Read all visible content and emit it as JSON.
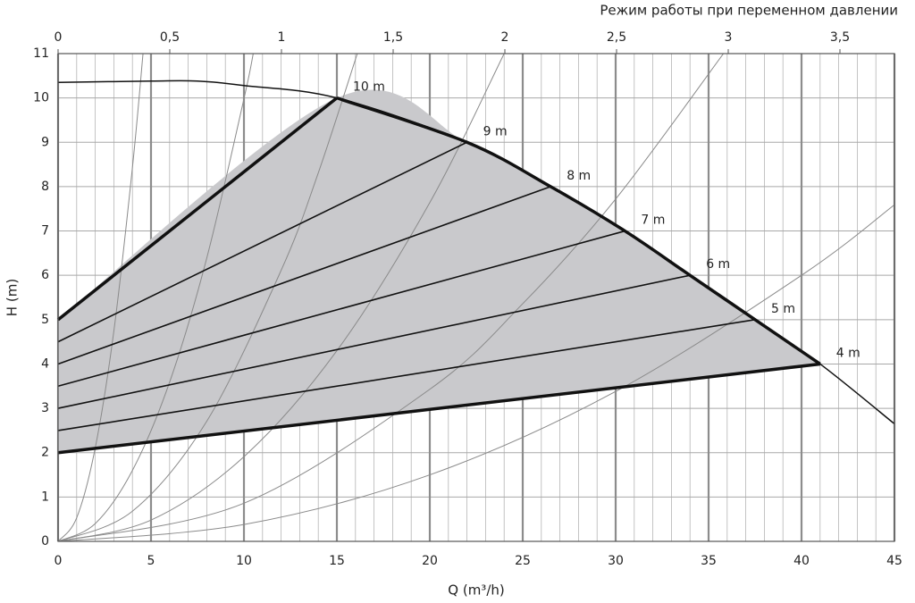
{
  "chart_data": {
    "type": "line",
    "x2label": "Режим работы при переменном давлении",
    "xlabel": "Q (m³/h)",
    "ylabel": "H (m)",
    "xlim": [
      0,
      45
    ],
    "ylim": [
      0,
      11
    ],
    "xticks": [
      0,
      5,
      10,
      15,
      20,
      25,
      30,
      35,
      40,
      45
    ],
    "yticks": [
      0,
      1,
      2,
      3,
      4,
      5,
      6,
      7,
      8,
      9,
      10,
      11
    ],
    "x2lim": [
      0,
      3.744
    ],
    "x2ticks": [
      0,
      {
        "value": 0.5,
        "label": "0,5"
      },
      1,
      {
        "value": 1.5,
        "label": "1,5"
      },
      2,
      {
        "value": 2.5,
        "label": "2,5"
      },
      3,
      {
        "value": 3.5,
        "label": "3,5"
      }
    ],
    "x_minor_step": 1,
    "grid": true,
    "area_color": "#c9c9cc",
    "pump_curve": {
      "color": "#111111",
      "x": [
        0,
        5,
        7.5,
        10,
        15,
        22,
        26.5,
        30.5,
        34,
        37.5,
        41,
        45
      ],
      "values": [
        10.35,
        10.38,
        10.38,
        10.28,
        10,
        9,
        8,
        7,
        6,
        5,
        4,
        2.65
      ]
    },
    "control_curves": [
      {
        "label": "10 m",
        "x": [
          0,
          15
        ],
        "values": [
          5,
          10
        ]
      },
      {
        "label": "9 m",
        "x": [
          0,
          22
        ],
        "values": [
          4.5,
          9
        ]
      },
      {
        "label": "8 m",
        "x": [
          0,
          26.5
        ],
        "values": [
          4,
          8
        ]
      },
      {
        "label": "7 m",
        "x": [
          0,
          30.5
        ],
        "values": [
          3.5,
          7
        ]
      },
      {
        "label": "6 m",
        "x": [
          0,
          34
        ],
        "values": [
          3,
          6
        ]
      },
      {
        "label": "5 m",
        "x": [
          0,
          37.5
        ],
        "values": [
          2.5,
          5
        ]
      },
      {
        "label": "4 m",
        "x": [
          0,
          41
        ],
        "values": [
          2,
          4
        ]
      }
    ],
    "system_curves": {
      "color": "#8a8a8a",
      "curves": [
        {
          "x": [
            0,
            1,
            2,
            3,
            4,
            4.57
          ],
          "values": [
            0,
            0.53,
            2.11,
            4.74,
            8.43,
            11
          ]
        },
        {
          "x": [
            0,
            2,
            4,
            6,
            8,
            10,
            10.5
          ],
          "values": [
            0,
            0.4,
            1.6,
            3.59,
            6.39,
            9.98,
            11
          ]
        },
        {
          "x": [
            0,
            4,
            8,
            12,
            14,
            16.1
          ],
          "values": [
            0,
            0.68,
            2.71,
            6.11,
            8.31,
            11
          ]
        },
        {
          "x": [
            0,
            5,
            10,
            15,
            20,
            24
          ],
          "values": [
            0,
            0.48,
            1.91,
            4.3,
            7.64,
            11
          ]
        },
        {
          "x": [
            0,
            10,
            20,
            25,
            30,
            35.8
          ],
          "values": [
            0,
            0.86,
            3.43,
            5.36,
            7.72,
            11
          ]
        },
        {
          "x": [
            0,
            10,
            20,
            30,
            40,
            45
          ],
          "values": [
            0,
            0.38,
            1.5,
            3.38,
            6,
            7.59
          ]
        }
      ]
    }
  }
}
